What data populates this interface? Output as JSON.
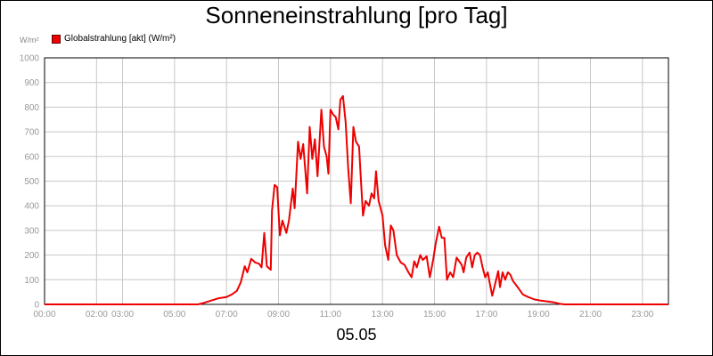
{
  "chart_data": {
    "type": "line",
    "title": "Sonneneinstrahlung [pro Tag]",
    "footer_label": "05.05",
    "y_unit": "W/m²",
    "xlim": [
      0,
      24
    ],
    "ylim": [
      0,
      1000
    ],
    "y_ticks": [
      0,
      100,
      200,
      300,
      400,
      500,
      600,
      700,
      800,
      900,
      1000
    ],
    "x_ticks": [
      {
        "t": 0,
        "label": "00:00"
      },
      {
        "t": 2,
        "label": "02:00"
      },
      {
        "t": 3,
        "label": "03:00"
      },
      {
        "t": 5,
        "label": "05:00"
      },
      {
        "t": 7,
        "label": "07:00"
      },
      {
        "t": 9,
        "label": "09:00"
      },
      {
        "t": 11,
        "label": "11:00"
      },
      {
        "t": 13,
        "label": "13:00"
      },
      {
        "t": 15,
        "label": "15:00"
      },
      {
        "t": 17,
        "label": "17:00"
      },
      {
        "t": 19,
        "label": "19:00"
      },
      {
        "t": 21,
        "label": "21:00"
      },
      {
        "t": 23,
        "label": "23:00"
      }
    ],
    "grid": true,
    "legend_position": "top-left",
    "series": [
      {
        "name": "Globalstrahlung [akt] (W/m²)",
        "color": "#ee0000",
        "points": [
          [
            0,
            0
          ],
          [
            5.9,
            0
          ],
          [
            6.1,
            5
          ],
          [
            6.4,
            15
          ],
          [
            6.7,
            25
          ],
          [
            7.0,
            30
          ],
          [
            7.2,
            40
          ],
          [
            7.4,
            55
          ],
          [
            7.55,
            90
          ],
          [
            7.7,
            155
          ],
          [
            7.8,
            130
          ],
          [
            7.95,
            185
          ],
          [
            8.1,
            170
          ],
          [
            8.25,
            165
          ],
          [
            8.35,
            150
          ],
          [
            8.45,
            290
          ],
          [
            8.55,
            155
          ],
          [
            8.7,
            140
          ],
          [
            8.75,
            380
          ],
          [
            8.85,
            485
          ],
          [
            8.95,
            475
          ],
          [
            9.05,
            280
          ],
          [
            9.15,
            340
          ],
          [
            9.3,
            290
          ],
          [
            9.4,
            340
          ],
          [
            9.55,
            470
          ],
          [
            9.62,
            390
          ],
          [
            9.75,
            660
          ],
          [
            9.85,
            590
          ],
          [
            9.95,
            650
          ],
          [
            10.1,
            450
          ],
          [
            10.2,
            720
          ],
          [
            10.3,
            590
          ],
          [
            10.4,
            670
          ],
          [
            10.5,
            520
          ],
          [
            10.65,
            790
          ],
          [
            10.75,
            640
          ],
          [
            10.85,
            600
          ],
          [
            10.92,
            530
          ],
          [
            11.0,
            790
          ],
          [
            11.1,
            770
          ],
          [
            11.2,
            760
          ],
          [
            11.3,
            710
          ],
          [
            11.38,
            830
          ],
          [
            11.48,
            845
          ],
          [
            11.58,
            740
          ],
          [
            11.68,
            550
          ],
          [
            11.78,
            410
          ],
          [
            11.88,
            720
          ],
          [
            11.98,
            660
          ],
          [
            12.1,
            640
          ],
          [
            12.15,
            540
          ],
          [
            12.25,
            360
          ],
          [
            12.35,
            420
          ],
          [
            12.48,
            400
          ],
          [
            12.58,
            450
          ],
          [
            12.68,
            430
          ],
          [
            12.75,
            540
          ],
          [
            12.85,
            420
          ],
          [
            13.0,
            360
          ],
          [
            13.1,
            240
          ],
          [
            13.22,
            180
          ],
          [
            13.32,
            320
          ],
          [
            13.42,
            300
          ],
          [
            13.55,
            200
          ],
          [
            13.7,
            170
          ],
          [
            13.85,
            160
          ],
          [
            14.0,
            130
          ],
          [
            14.12,
            110
          ],
          [
            14.22,
            175
          ],
          [
            14.32,
            150
          ],
          [
            14.45,
            200
          ],
          [
            14.55,
            180
          ],
          [
            14.7,
            195
          ],
          [
            14.82,
            110
          ],
          [
            14.95,
            180
          ],
          [
            15.05,
            250
          ],
          [
            15.18,
            315
          ],
          [
            15.28,
            270
          ],
          [
            15.38,
            270
          ],
          [
            15.48,
            100
          ],
          [
            15.6,
            130
          ],
          [
            15.72,
            110
          ],
          [
            15.85,
            190
          ],
          [
            15.95,
            175
          ],
          [
            16.05,
            160
          ],
          [
            16.12,
            130
          ],
          [
            16.22,
            190
          ],
          [
            16.35,
            210
          ],
          [
            16.45,
            150
          ],
          [
            16.55,
            200
          ],
          [
            16.65,
            210
          ],
          [
            16.75,
            200
          ],
          [
            16.85,
            150
          ],
          [
            16.95,
            110
          ],
          [
            17.05,
            130
          ],
          [
            17.12,
            90
          ],
          [
            17.22,
            35
          ],
          [
            17.35,
            90
          ],
          [
            17.45,
            135
          ],
          [
            17.52,
            70
          ],
          [
            17.62,
            130
          ],
          [
            17.72,
            100
          ],
          [
            17.82,
            130
          ],
          [
            17.92,
            120
          ],
          [
            18.02,
            95
          ],
          [
            18.2,
            70
          ],
          [
            18.4,
            40
          ],
          [
            18.6,
            30
          ],
          [
            18.85,
            20
          ],
          [
            19.1,
            15
          ],
          [
            19.35,
            12
          ],
          [
            19.6,
            8
          ],
          [
            19.8,
            3
          ],
          [
            20.0,
            0
          ],
          [
            24,
            0
          ]
        ]
      }
    ]
  }
}
